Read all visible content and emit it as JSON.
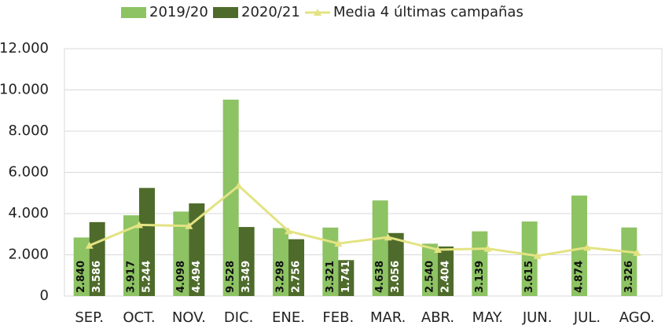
{
  "chart_data": {
    "type": "bar_line",
    "categories": [
      "SEP.",
      "OCT.",
      "NOV.",
      "DIC.",
      "ENE.",
      "FEB.",
      "MAR.",
      "ABR.",
      "MAY.",
      "JUN.",
      "JUL.",
      "AGO."
    ],
    "series": [
      {
        "name": "2019/20",
        "kind": "bar",
        "color": "#8dc363",
        "values": [
          2840,
          3917,
          4098,
          9528,
          3298,
          3321,
          4638,
          2540,
          3139,
          3615,
          4874,
          3326
        ],
        "value_labels": [
          "2.840",
          "3.917",
          "4.098",
          "9.528",
          "3.298",
          "3.321",
          "4.638",
          "2.540",
          "3.139",
          "3.615",
          "4.874",
          "3.326"
        ]
      },
      {
        "name": "2020/21",
        "kind": "bar",
        "color": "#4e6b2b",
        "values": [
          3586,
          5244,
          4494,
          3349,
          2756,
          1741,
          3056,
          2404,
          null,
          null,
          null,
          null
        ],
        "value_labels": [
          "3.586",
          "5.244",
          "4.494",
          "3.349",
          "2.756",
          "1.741",
          "3.056",
          "2.404",
          null,
          null,
          null,
          null
        ]
      },
      {
        "name": "Media 4 últimas campañas",
        "kind": "line",
        "color": "#e3e383",
        "values": [
          2450,
          3450,
          3400,
          5350,
          3150,
          2550,
          2850,
          2250,
          2300,
          1950,
          2350,
          2100
        ]
      }
    ],
    "ylim": [
      0,
      12000
    ],
    "yticks": [
      0,
      {
        "value": 2000,
        "label": "2.000"
      },
      {
        "value": 4000,
        "label": "4.000"
      },
      {
        "value": 6000,
        "label": "6.000"
      },
      {
        "value": 8000,
        "label": "8.000"
      },
      {
        "value": 10000,
        "label": "10.000"
      },
      {
        "value": 12000,
        "label": "12.000"
      }
    ],
    "grid": true,
    "legend": "top"
  }
}
